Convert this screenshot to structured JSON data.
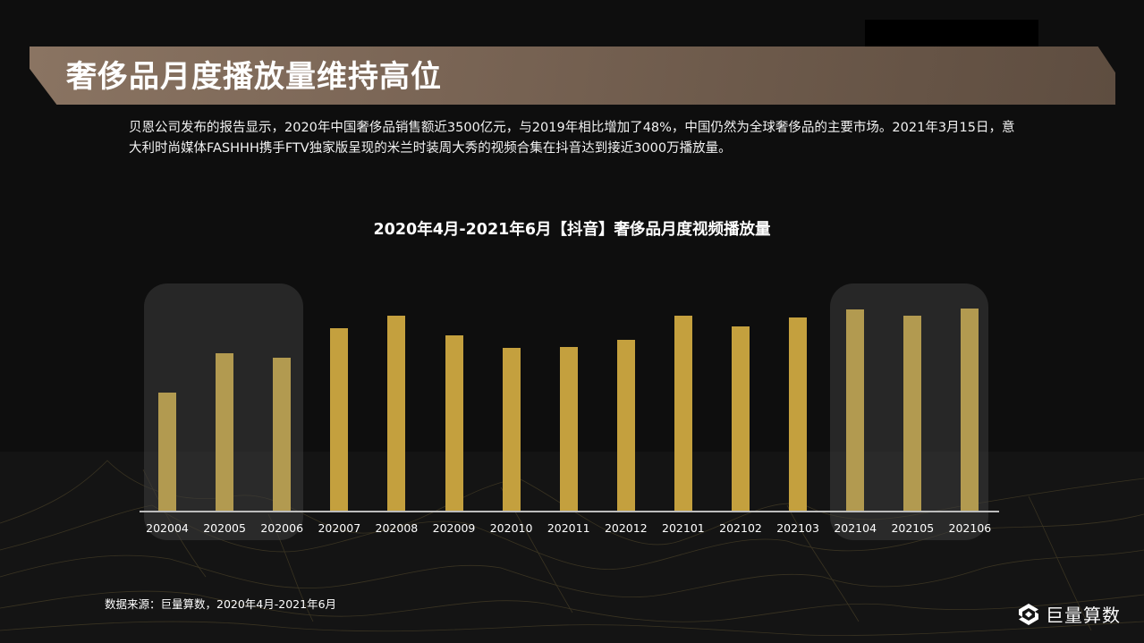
{
  "header": {
    "title": "奢侈品月度播放量维持高位"
  },
  "intro": {
    "text": "贝恩公司发布的报告显示，2020年中国奢侈品销售额近3500亿元，与2019年相比增加了48%，中国仍然为全球奢侈品的主要市场。2021年3月15日，意大利时尚媒体FASHHH携手FTV独家版呈现的米兰时装周大秀的视频合集在抖音达到接近3000万播放量。"
  },
  "chart_data": {
    "type": "bar",
    "title": "2020年4月-2021年6月【抖音】奢侈品月度视频播放量",
    "xlabel": "",
    "ylabel": "",
    "categories": [
      "202004",
      "202005",
      "202006",
      "202007",
      "202008",
      "202009",
      "202010",
      "202011",
      "202012",
      "202101",
      "202102",
      "202103",
      "202104",
      "202105",
      "202106"
    ],
    "values": [
      133,
      177,
      172,
      205,
      219,
      197,
      183,
      184,
      192,
      219,
      207,
      217,
      226,
      219,
      227
    ],
    "value_note": "relative bar heights (no y-axis shown)",
    "ylim": [
      0,
      240
    ],
    "grid": false,
    "legend": null,
    "highlighted_groups": [
      [
        "202004",
        "202005",
        "202006"
      ],
      [
        "202104",
        "202105",
        "202106"
      ]
    ],
    "bar_color": "#c4a03e"
  },
  "footer": {
    "source": "数据来源：巨量算数，2020年4月-2021年6月",
    "logo_text": "巨量算数",
    "logo_icon": "juliang-suanshu-logo-icon"
  }
}
